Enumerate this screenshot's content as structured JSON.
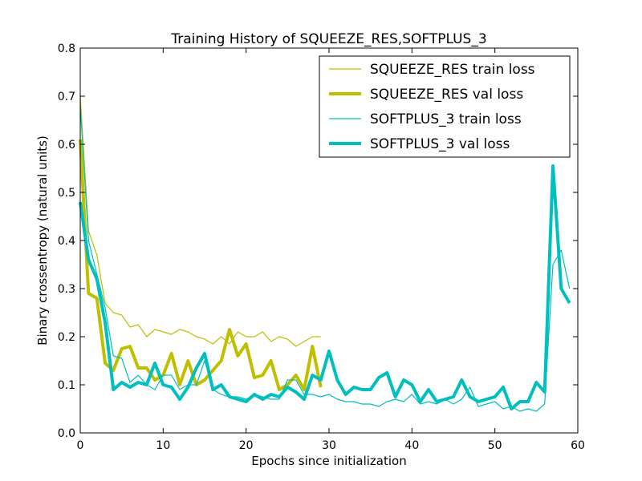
{
  "chart_data": {
    "type": "line",
    "title": "Training History of SQUEEZE_RES,SOFTPLUS_3",
    "xlabel": "Epochs since initialization",
    "ylabel": "Binary crossentropy (natural units)",
    "xlim": [
      0,
      60
    ],
    "ylim": [
      0,
      0.8
    ],
    "xticks": [
      "0",
      "10",
      "20",
      "30",
      "40",
      "50",
      "60"
    ],
    "yticks": [
      "0.0",
      "0.1",
      "0.2",
      "0.3",
      "0.4",
      "0.5",
      "0.6",
      "0.7",
      "0.8"
    ],
    "grid": false,
    "legend_position": "top-right",
    "series": [
      {
        "name": "SQUEEZE_RES train loss",
        "color": "#bfbf00",
        "style": "thin",
        "x": [
          0,
          1,
          2,
          3,
          4,
          5,
          6,
          7,
          8,
          9,
          10,
          11,
          12,
          13,
          14,
          15,
          16,
          17,
          18,
          19,
          20,
          21,
          22,
          23,
          24,
          25,
          26,
          27,
          28,
          29
        ],
        "y": [
          0.7,
          0.42,
          0.37,
          0.27,
          0.25,
          0.245,
          0.22,
          0.225,
          0.2,
          0.215,
          0.21,
          0.205,
          0.215,
          0.21,
          0.2,
          0.195,
          0.185,
          0.2,
          0.185,
          0.21,
          0.2,
          0.2,
          0.21,
          0.19,
          0.2,
          0.195,
          0.18,
          0.19,
          0.2,
          0.2
        ]
      },
      {
        "name": "SQUEEZE_RES val loss",
        "color": "#bfbf00",
        "style": "thick",
        "x": [
          0,
          1,
          2,
          3,
          4,
          5,
          6,
          7,
          8,
          9,
          10,
          11,
          12,
          13,
          14,
          15,
          16,
          17,
          18,
          19,
          20,
          21,
          22,
          23,
          24,
          25,
          26,
          27,
          28,
          29
        ],
        "y": [
          0.61,
          0.29,
          0.28,
          0.145,
          0.13,
          0.175,
          0.18,
          0.135,
          0.135,
          0.11,
          0.12,
          0.165,
          0.1,
          0.15,
          0.1,
          0.11,
          0.13,
          0.15,
          0.215,
          0.16,
          0.185,
          0.115,
          0.12,
          0.15,
          0.09,
          0.1,
          0.12,
          0.09,
          0.18,
          0.095
        ]
      },
      {
        "name": "SOFTPLUS_3 train loss",
        "color": "#00bfbf",
        "style": "thin",
        "x": [
          0,
          1,
          2,
          3,
          4,
          5,
          6,
          7,
          8,
          9,
          10,
          11,
          12,
          13,
          14,
          15,
          16,
          17,
          18,
          19,
          20,
          21,
          22,
          23,
          24,
          25,
          26,
          27,
          28,
          29,
          30,
          31,
          32,
          33,
          34,
          35,
          36,
          37,
          38,
          39,
          40,
          41,
          42,
          43,
          44,
          45,
          46,
          47,
          48,
          49,
          50,
          51,
          52,
          53,
          54,
          55,
          56,
          57,
          58,
          59
        ],
        "y": [
          0.68,
          0.4,
          0.33,
          0.26,
          0.16,
          0.155,
          0.105,
          0.12,
          0.1,
          0.09,
          0.12,
          0.12,
          0.09,
          0.1,
          0.1,
          0.15,
          0.09,
          0.08,
          0.075,
          0.075,
          0.07,
          0.08,
          0.075,
          0.07,
          0.07,
          0.11,
          0.11,
          0.08,
          0.08,
          0.075,
          0.08,
          0.07,
          0.065,
          0.065,
          0.06,
          0.06,
          0.055,
          0.065,
          0.07,
          0.065,
          0.08,
          0.06,
          0.065,
          0.06,
          0.07,
          0.06,
          0.07,
          0.095,
          0.055,
          0.06,
          0.065,
          0.05,
          0.055,
          0.045,
          0.05,
          0.045,
          0.06,
          0.35,
          0.38,
          0.3
        ]
      },
      {
        "name": "SOFTPLUS_3 val loss",
        "color": "#00bfbf",
        "style": "thick",
        "x": [
          0,
          1,
          2,
          3,
          4,
          5,
          6,
          7,
          8,
          9,
          10,
          11,
          12,
          13,
          14,
          15,
          16,
          17,
          18,
          19,
          20,
          21,
          22,
          23,
          24,
          25,
          26,
          27,
          28,
          29,
          30,
          31,
          32,
          33,
          34,
          35,
          36,
          37,
          38,
          39,
          40,
          41,
          42,
          43,
          44,
          45,
          46,
          47,
          48,
          49,
          50,
          51,
          52,
          53,
          54,
          55,
          56,
          57,
          58,
          59
        ],
        "y": [
          0.48,
          0.36,
          0.32,
          0.23,
          0.09,
          0.105,
          0.095,
          0.105,
          0.1,
          0.145,
          0.1,
          0.095,
          0.07,
          0.095,
          0.135,
          0.165,
          0.09,
          0.1,
          0.075,
          0.07,
          0.065,
          0.08,
          0.07,
          0.08,
          0.075,
          0.095,
          0.085,
          0.07,
          0.12,
          0.11,
          0.17,
          0.11,
          0.08,
          0.095,
          0.09,
          0.09,
          0.115,
          0.125,
          0.075,
          0.11,
          0.1,
          0.065,
          0.09,
          0.065,
          0.07,
          0.075,
          0.11,
          0.075,
          0.065,
          0.07,
          0.075,
          0.095,
          0.05,
          0.065,
          0.065,
          0.105,
          0.085,
          0.555,
          0.3,
          0.27
        ]
      }
    ]
  }
}
